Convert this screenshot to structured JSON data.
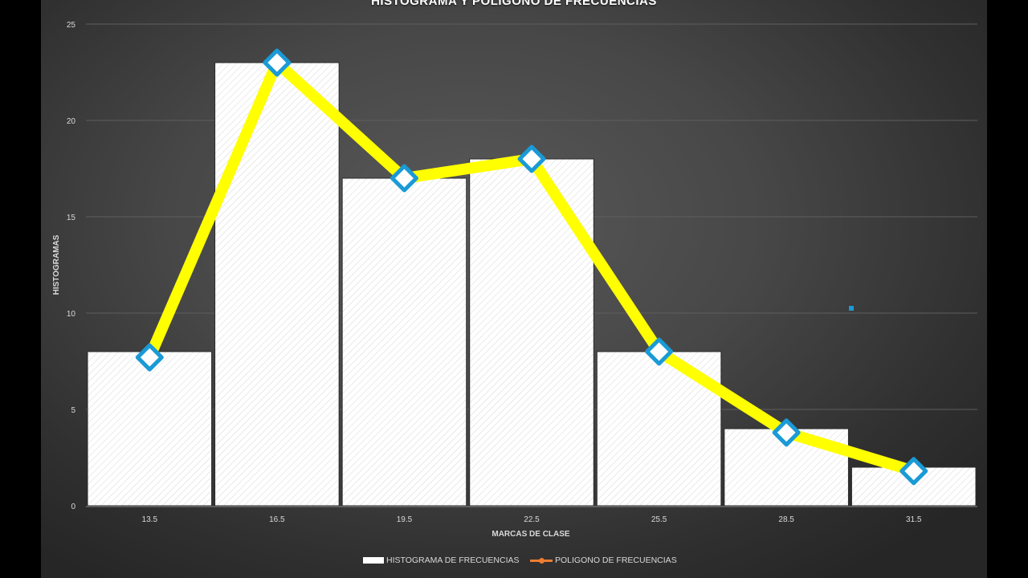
{
  "chart_data": {
    "type": "bar",
    "title": "HISTOGRAMA Y POLIGONO DE FRECUENCIAS",
    "xlabel": "MARCAS DE CLASE",
    "ylabel": "HISTOGRAMAS",
    "categories": [
      "13.5",
      "16.5",
      "19.5",
      "22.5",
      "25.5",
      "28.5",
      "31.5"
    ],
    "ylim": [
      0,
      25
    ],
    "yticks": [
      "0",
      "5",
      "10",
      "15",
      "20",
      "25"
    ],
    "grid": true,
    "legend_position": "bottom",
    "series": [
      {
        "name": "HISTOGRAMA DE FRECUENCIAS",
        "type": "bar",
        "values": [
          8,
          23,
          17,
          18,
          8,
          4,
          2
        ],
        "color": "#ffffff"
      },
      {
        "name": "POLIGONO DE FRECUENCIAS",
        "type": "line",
        "values": [
          7.7,
          23,
          17,
          18,
          8,
          3.8,
          1.8
        ],
        "color": "#ffff00",
        "marker_color": "#1a9ad6"
      }
    ]
  }
}
